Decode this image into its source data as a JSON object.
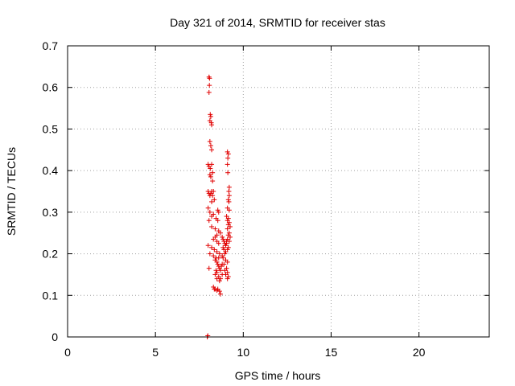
{
  "chart_data": {
    "type": "scatter",
    "title": "Day 321 of 2014, SRMTID for receiver stas",
    "xlabel": "GPS time / hours",
    "ylabel": "SRMTID / TECUs",
    "xlim": [
      0,
      24
    ],
    "ylim": [
      0,
      0.7
    ],
    "xticks": [
      0,
      5,
      10,
      15,
      20
    ],
    "xtick_labels": [
      "0",
      "5",
      "10",
      "15",
      "20"
    ],
    "yticks": [
      0,
      0.1,
      0.2,
      0.3,
      0.4,
      0.5,
      0.6,
      0.7
    ],
    "ytick_labels": [
      "0",
      "0.1",
      "0.2",
      "0.3",
      "0.4",
      "0.5",
      "0.6",
      "0.7"
    ],
    "grid": true,
    "marker": "+",
    "color": "#e00000",
    "series": [
      {
        "name": "stas",
        "points": [
          [
            7.95,
            0.0
          ],
          [
            7.98,
            0.003
          ],
          [
            8.05,
            0.625
          ],
          [
            8.08,
            0.622
          ],
          [
            8.07,
            0.605
          ],
          [
            8.05,
            0.588
          ],
          [
            8.12,
            0.535
          ],
          [
            8.15,
            0.53
          ],
          [
            8.1,
            0.52
          ],
          [
            8.18,
            0.515
          ],
          [
            8.2,
            0.51
          ],
          [
            8.1,
            0.47
          ],
          [
            8.15,
            0.46
          ],
          [
            8.2,
            0.45
          ],
          [
            8.0,
            0.415
          ],
          [
            8.05,
            0.41
          ],
          [
            8.12,
            0.405
          ],
          [
            8.2,
            0.415
          ],
          [
            8.25,
            0.395
          ],
          [
            8.1,
            0.39
          ],
          [
            8.15,
            0.385
          ],
          [
            8.25,
            0.375
          ],
          [
            8.0,
            0.35
          ],
          [
            8.05,
            0.345
          ],
          [
            8.1,
            0.34
          ],
          [
            8.15,
            0.345
          ],
          [
            8.2,
            0.35
          ],
          [
            8.25,
            0.34
          ],
          [
            8.3,
            0.35
          ],
          [
            8.35,
            0.33
          ],
          [
            8.2,
            0.325
          ],
          [
            8.0,
            0.31
          ],
          [
            8.1,
            0.3
          ],
          [
            8.2,
            0.29
          ],
          [
            8.3,
            0.295
          ],
          [
            8.55,
            0.305
          ],
          [
            8.6,
            0.3
          ],
          [
            8.05,
            0.28
          ],
          [
            8.45,
            0.285
          ],
          [
            8.55,
            0.28
          ],
          [
            8.2,
            0.265
          ],
          [
            8.4,
            0.26
          ],
          [
            8.6,
            0.255
          ],
          [
            8.5,
            0.245
          ],
          [
            8.7,
            0.25
          ],
          [
            8.4,
            0.24
          ],
          [
            8.3,
            0.235
          ],
          [
            8.5,
            0.23
          ],
          [
            8.6,
            0.225
          ],
          [
            8.0,
            0.22
          ],
          [
            8.2,
            0.215
          ],
          [
            8.35,
            0.21
          ],
          [
            8.5,
            0.205
          ],
          [
            8.65,
            0.2
          ],
          [
            8.1,
            0.2
          ],
          [
            8.3,
            0.195
          ],
          [
            8.45,
            0.19
          ],
          [
            8.4,
            0.185
          ],
          [
            8.6,
            0.19
          ],
          [
            8.5,
            0.18
          ],
          [
            8.55,
            0.175
          ],
          [
            8.6,
            0.17
          ],
          [
            8.65,
            0.165
          ],
          [
            8.7,
            0.16
          ],
          [
            8.75,
            0.17
          ],
          [
            8.8,
            0.175
          ],
          [
            8.05,
            0.165
          ],
          [
            8.45,
            0.16
          ],
          [
            8.5,
            0.155
          ],
          [
            8.4,
            0.15
          ],
          [
            8.6,
            0.145
          ],
          [
            8.7,
            0.14
          ],
          [
            8.8,
            0.15
          ],
          [
            8.5,
            0.14
          ],
          [
            8.65,
            0.135
          ],
          [
            8.3,
            0.12
          ],
          [
            8.35,
            0.115
          ],
          [
            8.4,
            0.115
          ],
          [
            8.5,
            0.112
          ],
          [
            8.55,
            0.115
          ],
          [
            8.65,
            0.11
          ],
          [
            8.7,
            0.103
          ],
          [
            8.8,
            0.24
          ],
          [
            8.85,
            0.235
          ],
          [
            8.9,
            0.23
          ],
          [
            8.95,
            0.225
          ],
          [
            9.0,
            0.22
          ],
          [
            9.05,
            0.23
          ],
          [
            8.85,
            0.215
          ],
          [
            8.9,
            0.21
          ],
          [
            9.0,
            0.205
          ],
          [
            8.95,
            0.2
          ],
          [
            8.8,
            0.195
          ],
          [
            8.85,
            0.19
          ],
          [
            9.0,
            0.185
          ],
          [
            9.1,
            0.18
          ],
          [
            8.9,
            0.175
          ],
          [
            9.05,
            0.165
          ],
          [
            8.95,
            0.16
          ],
          [
            9.1,
            0.155
          ],
          [
            9.0,
            0.15
          ],
          [
            9.15,
            0.145
          ],
          [
            9.1,
            0.14
          ],
          [
            9.1,
            0.445
          ],
          [
            9.15,
            0.44
          ],
          [
            9.12,
            0.43
          ],
          [
            9.1,
            0.415
          ],
          [
            9.12,
            0.395
          ],
          [
            9.2,
            0.36
          ],
          [
            9.18,
            0.35
          ],
          [
            9.2,
            0.34
          ],
          [
            9.15,
            0.33
          ],
          [
            9.18,
            0.325
          ],
          [
            9.1,
            0.31
          ],
          [
            9.2,
            0.305
          ],
          [
            9.05,
            0.29
          ],
          [
            9.15,
            0.285
          ],
          [
            9.1,
            0.28
          ],
          [
            9.2,
            0.275
          ],
          [
            9.15,
            0.27
          ],
          [
            9.25,
            0.265
          ],
          [
            9.1,
            0.26
          ],
          [
            9.2,
            0.25
          ],
          [
            9.15,
            0.245
          ],
          [
            9.25,
            0.24
          ],
          [
            9.1,
            0.235
          ],
          [
            9.2,
            0.23
          ],
          [
            9.05,
            0.225
          ],
          [
            9.15,
            0.215
          ],
          [
            9.1,
            0.21
          ]
        ]
      }
    ]
  }
}
